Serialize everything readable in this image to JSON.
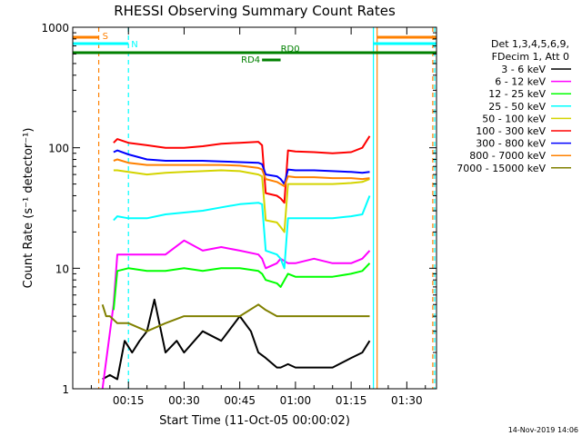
{
  "chart_data": {
    "type": "line",
    "title": "RHESSI Observing Summary Count Rates",
    "xlabel": "Start Time (11-Oct-05 00:00:02)",
    "ylabel": "Count Rate (s⁻¹ detector⁻¹)",
    "yscale": "log",
    "ylim": [
      1,
      1000
    ],
    "xlim_minutes": [
      0,
      98
    ],
    "x_ticks": [
      {
        "minute": 15,
        "label": "00:15"
      },
      {
        "minute": 30,
        "label": "00:30"
      },
      {
        "minute": 45,
        "label": "00:45"
      },
      {
        "minute": 60,
        "label": "01:00"
      },
      {
        "minute": 75,
        "label": "01:15"
      },
      {
        "minute": 90,
        "label": "01:30"
      }
    ],
    "y_ticks": [
      {
        "value": 1,
        "label": "1"
      },
      {
        "value": 10,
        "label": "10"
      },
      {
        "value": 100,
        "label": "100"
      },
      {
        "value": 1000,
        "label": "1000"
      }
    ],
    "legend": {
      "header": [
        "Det 1,3,4,5,6,9,",
        "FDecim 1, Att 0"
      ],
      "placement": "right",
      "entries": [
        {
          "label": "3 - 6 keV",
          "color": "#000000"
        },
        {
          "label": "6 - 12 keV",
          "color": "#ff00ff"
        },
        {
          "label": "12 - 25 keV",
          "color": "#00ff00"
        },
        {
          "label": "25 - 50 keV",
          "color": "#00ffff"
        },
        {
          "label": "50 - 100 keV",
          "color": "#d4d400"
        },
        {
          "label": "100 - 300 keV",
          "color": "#ff0000"
        },
        {
          "label": "300 - 800 keV",
          "color": "#0000ff"
        },
        {
          "label": "800 - 7000 keV",
          "color": "#ff8000"
        },
        {
          "label": "7000 - 15000 keV",
          "color": "#808000"
        }
      ]
    },
    "flag_bars": [
      {
        "label": "S",
        "color": "#ff8000",
        "segments": [
          [
            0,
            7
          ],
          [
            82,
            98
          ]
        ]
      },
      {
        "label": "N",
        "color": "#00ffff",
        "segments": [
          [
            0,
            15
          ],
          [
            81,
            98
          ]
        ]
      },
      {
        "label": "RD0",
        "color": "#008000",
        "segments": [
          [
            0,
            98
          ]
        ]
      },
      {
        "label": "RD4",
        "color": "#008000",
        "segments": [
          [
            51,
            56
          ]
        ]
      }
    ],
    "vertical_markers": [
      {
        "minute": 7,
        "color": "#ff8000",
        "style": "dashed"
      },
      {
        "minute": 15,
        "color": "#00ffff",
        "style": "dashed"
      },
      {
        "minute": 81,
        "color": "#00ffff",
        "style": "solid"
      },
      {
        "minute": 82,
        "color": "#ff8000",
        "style": "solid"
      },
      {
        "minute": 97,
        "color": "#ff8000",
        "style": "dashed"
      },
      {
        "minute": 97.5,
        "color": "#00ffff",
        "style": "dashed"
      }
    ],
    "series": [
      {
        "name": "3 - 6 keV",
        "color": "#000000",
        "x": [
          8,
          10,
          12,
          14,
          16,
          18,
          20,
          22,
          25,
          28,
          30,
          35,
          40,
          45,
          48,
          50,
          52,
          55,
          56,
          58,
          60,
          65,
          70,
          75,
          78,
          80
        ],
        "y": [
          1.2,
          1.3,
          1.2,
          2.5,
          2.0,
          2.5,
          3.0,
          5.5,
          2.0,
          2.5,
          2.0,
          3.0,
          2.5,
          4.0,
          3.0,
          2.0,
          1.8,
          1.5,
          1.5,
          1.6,
          1.5,
          1.5,
          1.5,
          1.8,
          2.0,
          2.5
        ]
      },
      {
        "name": "6 - 12 keV",
        "color": "#ff00ff",
        "x": [
          8,
          11,
          12,
          15,
          20,
          25,
          30,
          35,
          40,
          45,
          50,
          51,
          52,
          55,
          56,
          58,
          60,
          65,
          70,
          75,
          78,
          80
        ],
        "y": [
          1.0,
          5.0,
          13,
          13,
          13,
          13,
          17,
          14,
          15,
          14,
          13,
          12,
          10,
          11,
          12,
          11,
          11,
          12,
          11,
          11,
          12,
          14
        ]
      },
      {
        "name": "12 - 25 keV",
        "color": "#00ff00",
        "x": [
          11,
          12,
          15,
          20,
          25,
          30,
          35,
          40,
          45,
          50,
          51,
          52,
          55,
          56,
          58,
          60,
          65,
          70,
          75,
          78,
          80
        ],
        "y": [
          4.5,
          9.5,
          10,
          9.5,
          9.5,
          10,
          9.5,
          10,
          10,
          9.5,
          9.0,
          8.0,
          7.5,
          7.0,
          9.0,
          8.5,
          8.5,
          8.5,
          9.0,
          9.5,
          11
        ]
      },
      {
        "name": "25 - 50 keV",
        "color": "#00ffff",
        "x": [
          11,
          12,
          15,
          20,
          25,
          30,
          35,
          40,
          45,
          50,
          51,
          52,
          55,
          56,
          57,
          58,
          60,
          65,
          70,
          75,
          78,
          80
        ],
        "y": [
          25,
          27,
          26,
          26,
          28,
          29,
          30,
          32,
          34,
          35,
          34,
          14,
          13,
          12,
          10,
          26,
          26,
          26,
          26,
          27,
          28,
          40
        ]
      },
      {
        "name": "50 - 100 keV",
        "color": "#d4d400",
        "x": [
          11,
          12,
          15,
          20,
          25,
          30,
          35,
          40,
          45,
          50,
          51,
          52,
          55,
          56,
          57,
          58,
          60,
          65,
          70,
          75,
          78,
          80
        ],
        "y": [
          65,
          65,
          63,
          60,
          62,
          63,
          64,
          65,
          64,
          60,
          58,
          25,
          24,
          22,
          20,
          50,
          50,
          50,
          50,
          51,
          52,
          55
        ]
      },
      {
        "name": "100 - 300 keV",
        "color": "#ff0000",
        "x": [
          11,
          12,
          15,
          20,
          25,
          30,
          35,
          40,
          45,
          50,
          51,
          52,
          55,
          56,
          57,
          58,
          60,
          65,
          70,
          75,
          78,
          80
        ],
        "y": [
          110,
          118,
          110,
          105,
          100,
          100,
          103,
          108,
          110,
          112,
          105,
          42,
          40,
          38,
          35,
          95,
          93,
          92,
          90,
          92,
          100,
          125
        ]
      },
      {
        "name": "300 - 800 keV",
        "color": "#0000ff",
        "x": [
          11,
          12,
          15,
          20,
          25,
          30,
          35,
          40,
          45,
          50,
          51,
          52,
          55,
          56,
          57,
          58,
          60,
          65,
          70,
          75,
          78,
          80
        ],
        "y": [
          92,
          95,
          88,
          80,
          78,
          78,
          78,
          77,
          76,
          75,
          73,
          60,
          58,
          55,
          50,
          66,
          65,
          65,
          64,
          63,
          62,
          63
        ]
      },
      {
        "name": "800 - 7000 keV",
        "color": "#ff8000",
        "x": [
          11,
          12,
          15,
          20,
          25,
          30,
          35,
          40,
          45,
          50,
          51,
          52,
          55,
          56,
          57,
          58,
          60,
          65,
          70,
          75,
          78,
          80
        ],
        "y": [
          78,
          80,
          75,
          72,
          72,
          72,
          72,
          72,
          71,
          68,
          66,
          55,
          52,
          50,
          48,
          58,
          57,
          57,
          56,
          56,
          55,
          56
        ]
      },
      {
        "name": "7000 - 15000 keV",
        "color": "#808000",
        "x": [
          8,
          9,
          10,
          12,
          15,
          20,
          25,
          30,
          35,
          40,
          45,
          50,
          52,
          55,
          56,
          58,
          60,
          65,
          70,
          75,
          78,
          80
        ],
        "y": [
          5.0,
          4.0,
          4.0,
          3.5,
          3.5,
          3.0,
          3.5,
          4.0,
          4.0,
          4.0,
          4.0,
          5.0,
          4.5,
          4.0,
          4.0,
          4.0,
          4.0,
          4.0,
          4.0,
          4.0,
          4.0,
          4.0
        ]
      }
    ]
  },
  "footer": {
    "date_stamp": "14-Nov-2019 14:06"
  }
}
